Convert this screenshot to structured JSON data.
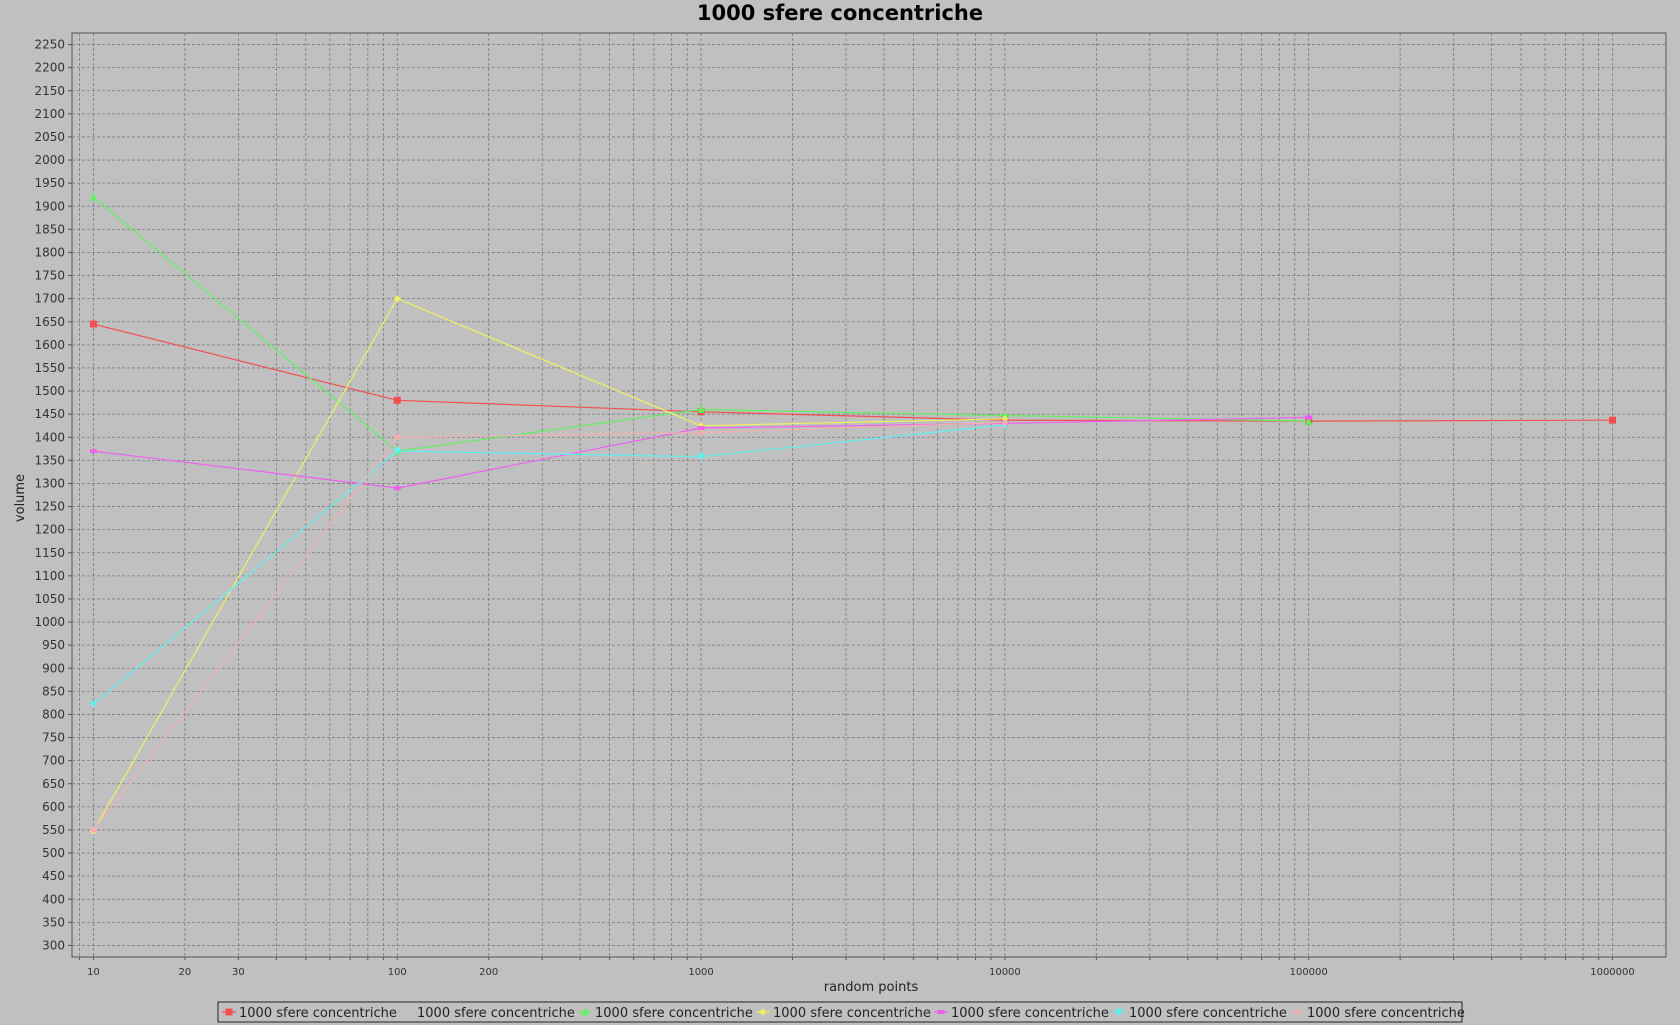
{
  "chart_data": {
    "type": "line",
    "title": "1000 sfere concentriche",
    "xlabel": "random points",
    "ylabel": "volume",
    "x_scale": "log",
    "xlim": [
      8.5,
      1500000
    ],
    "ylim": [
      275,
      2275
    ],
    "y_ticks": [
      300,
      350,
      400,
      450,
      500,
      550,
      600,
      650,
      700,
      750,
      800,
      850,
      900,
      950,
      1000,
      1050,
      1100,
      1150,
      1200,
      1250,
      1300,
      1350,
      1400,
      1450,
      1500,
      1550,
      1600,
      1650,
      1700,
      1750,
      1800,
      1850,
      1900,
      1950,
      2000,
      2050,
      2100,
      2150,
      2200,
      2250
    ],
    "x_ticks": [
      {
        "value": 10,
        "label": "10"
      },
      {
        "value": 20,
        "label": "20"
      },
      {
        "value": 30,
        "label": "30"
      },
      {
        "value": 100,
        "label": "100"
      },
      {
        "value": 200,
        "label": "200"
      },
      {
        "value": 1000,
        "label": "1000"
      },
      {
        "value": 10000,
        "label": "10000"
      },
      {
        "value": 100000,
        "label": "100000"
      },
      {
        "value": 1000000,
        "label": "1000000"
      }
    ],
    "grid": true,
    "legend_position": "bottom",
    "series": [
      {
        "name": "1000 sfere concentriche",
        "color": "#f05050",
        "marker": "square",
        "points": [
          [
            10,
            1645
          ],
          [
            100,
            1480
          ],
          [
            1000,
            1455
          ],
          [
            10000,
            1437
          ],
          [
            100000,
            1435
          ],
          [
            1000000,
            1437
          ]
        ]
      },
      {
        "name": "1000 sfere concentriche",
        "color": "#8080ff",
        "marker": "none",
        "points": [
          [
            100000,
            1443
          ]
        ]
      },
      {
        "name": "1000 sfere concentriche",
        "color": "#60f060",
        "marker": "triangle-up",
        "points": [
          [
            10,
            1920
          ],
          [
            100,
            1370
          ],
          [
            1000,
            1460
          ],
          [
            10000,
            1447
          ],
          [
            100000,
            1435
          ]
        ]
      },
      {
        "name": "1000 sfere concentriche",
        "color": "#f0f060",
        "marker": "diamond",
        "points": [
          [
            10,
            547
          ],
          [
            100,
            1700
          ],
          [
            1000,
            1425
          ],
          [
            10000,
            1440
          ]
        ]
      },
      {
        "name": "1000 sfere concentriche",
        "color": "#f060f0",
        "marker": "rect",
        "points": [
          [
            10,
            1370
          ],
          [
            100,
            1290
          ],
          [
            1000,
            1420
          ],
          [
            10000,
            1430
          ],
          [
            100000,
            1443
          ]
        ]
      },
      {
        "name": "1000 sfere concentriche",
        "color": "#60f0f0",
        "marker": "triangle-down",
        "points": [
          [
            10,
            822
          ],
          [
            100,
            1370
          ],
          [
            1000,
            1358
          ],
          [
            10000,
            1427
          ]
        ]
      },
      {
        "name": "1000 sfere concentriche",
        "color": "#f0b0b0",
        "marker": "circle",
        "points": [
          [
            10,
            550
          ],
          [
            100,
            1400
          ],
          [
            1000,
            1410
          ],
          [
            10000,
            1432
          ]
        ]
      }
    ]
  }
}
